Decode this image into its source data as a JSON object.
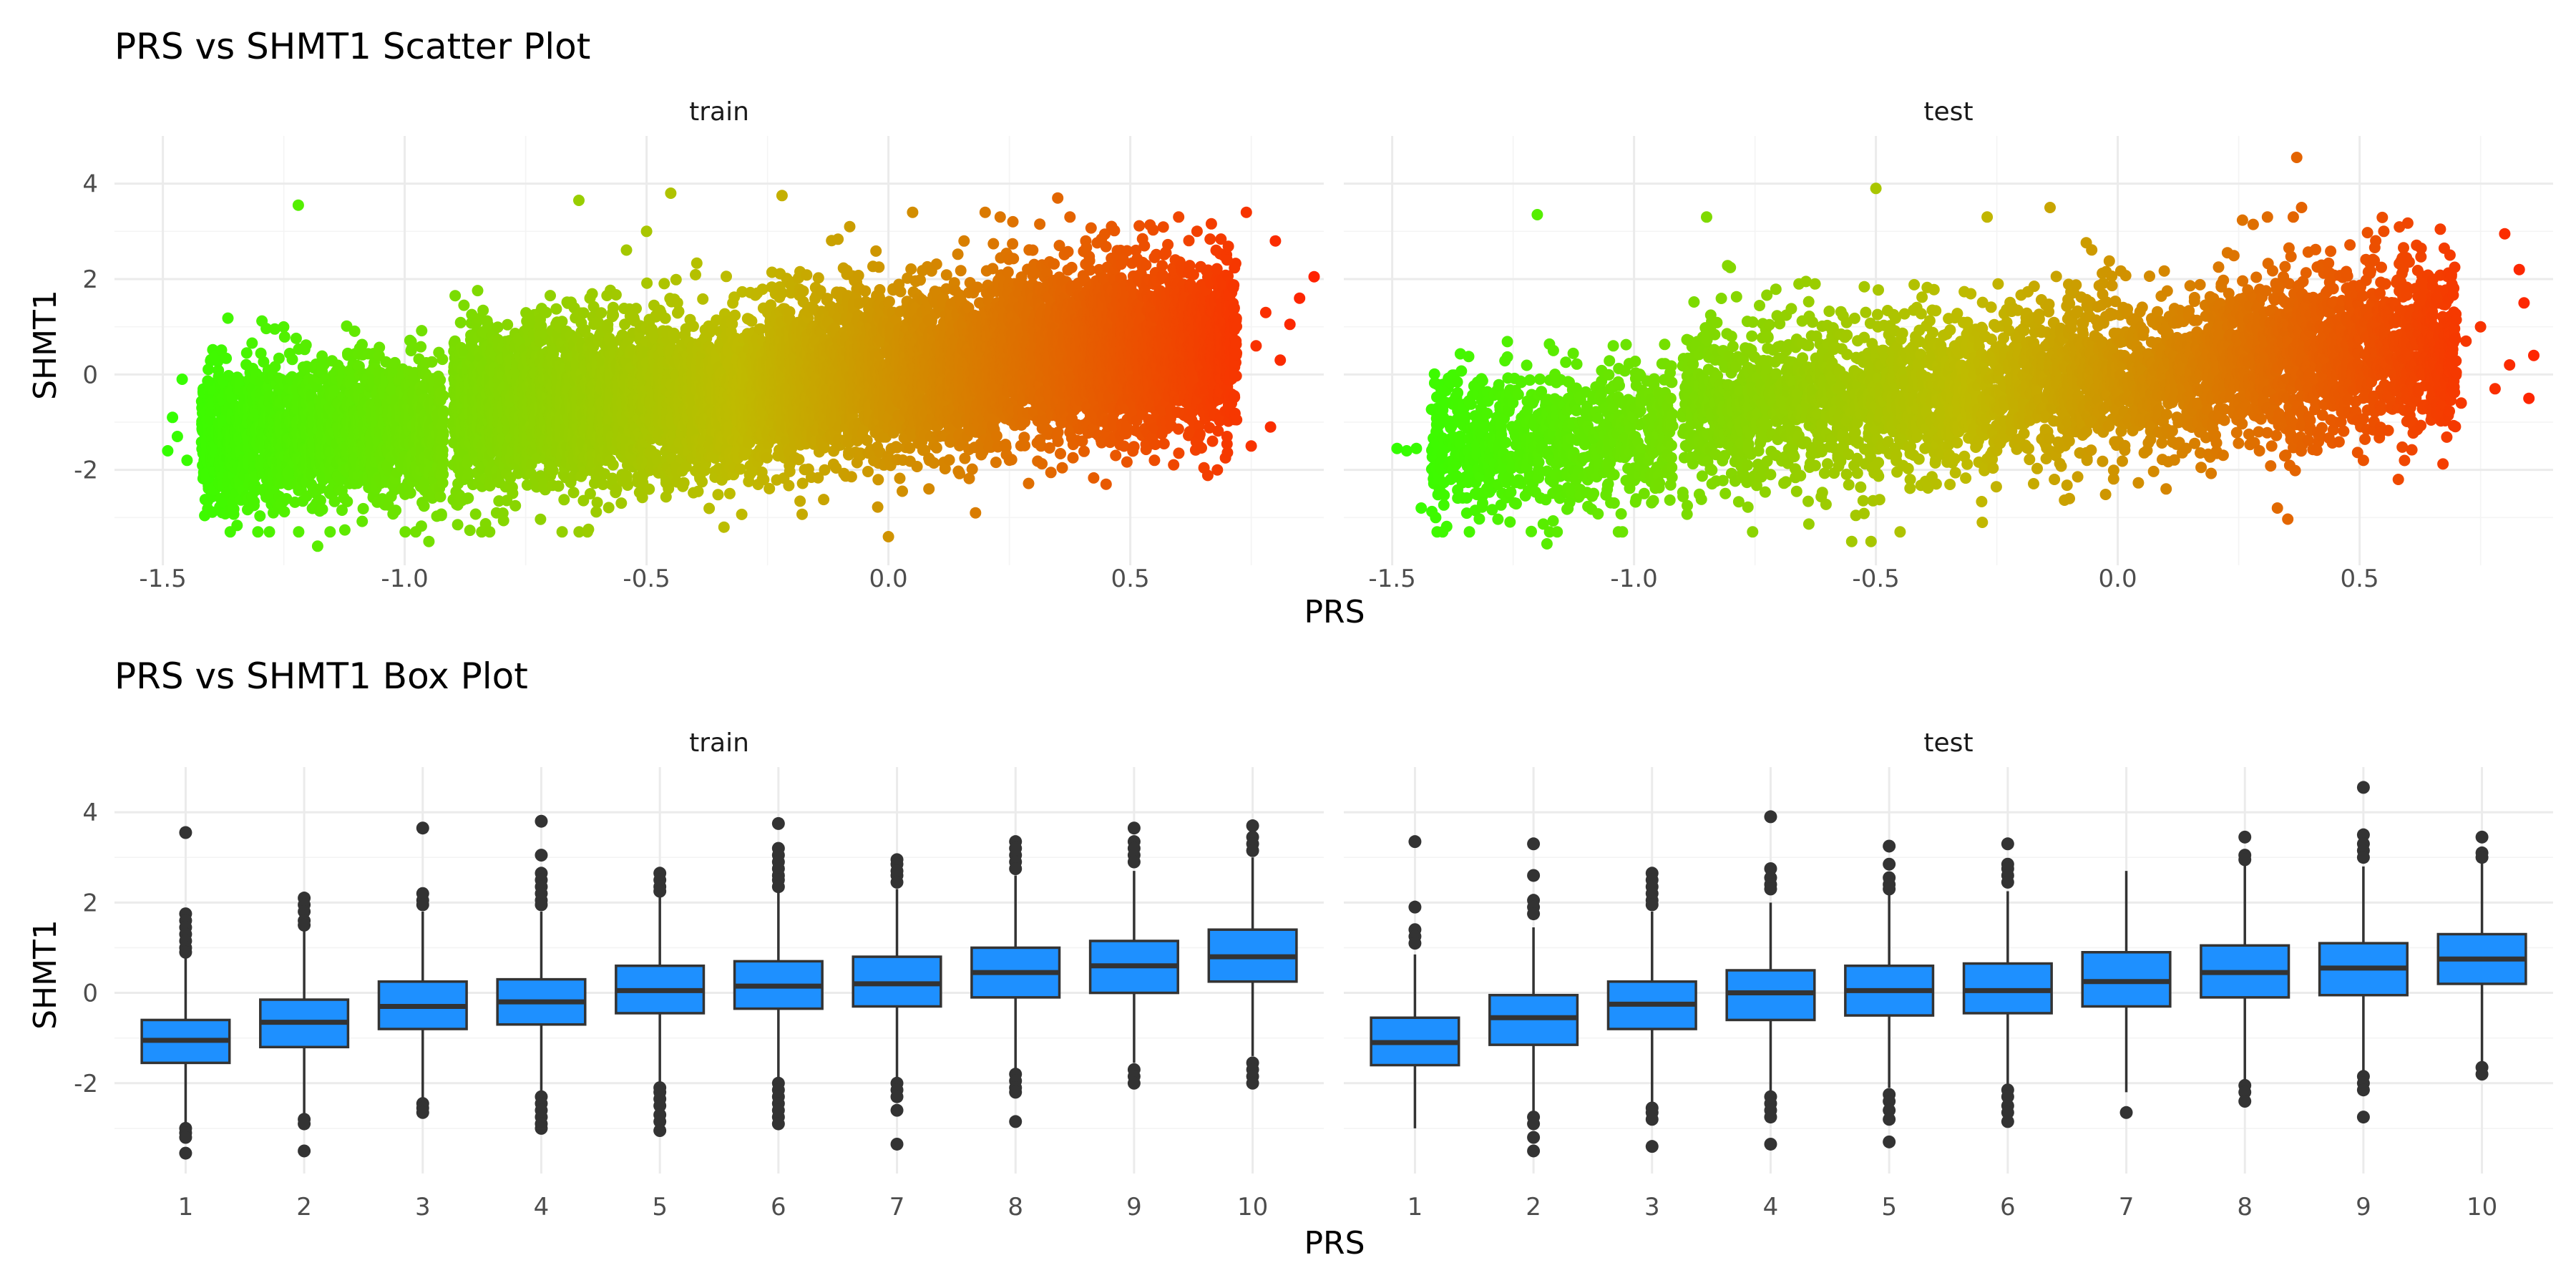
{
  "chart_data": [
    {
      "type": "scatter",
      "title": "PRS vs SHMT1 Scatter Plot",
      "xlabel": "PRS",
      "ylabel": "SHMT1",
      "facets": [
        "train",
        "test"
      ],
      "xlim": [
        -1.6,
        0.9
      ],
      "ylim": [
        -4,
        5
      ],
      "x_ticks": [
        -1.5,
        -1.0,
        -0.5,
        0.0,
        0.5
      ],
      "x_tick_labels": [
        "-1.5",
        "-1.0",
        "-0.5",
        "0.0",
        "0.5"
      ],
      "y_ticks": [
        -2,
        0,
        2,
        4
      ],
      "y_tick_labels": [
        "-2",
        "0",
        "2",
        "4"
      ],
      "color_scale": {
        "low": "#33ff00",
        "mid": "#bfbb00",
        "high": "#ff2200",
        "mapped_to": "PRS"
      },
      "trend": "positive association; SHMT1 rises with PRS",
      "panels": [
        {
          "facet": "train",
          "clusters": [
            {
              "x_range": [
                -1.42,
                -0.92
              ],
              "y_mean": -1.2,
              "y_spread": 0.75,
              "n": 2000
            },
            {
              "x_range": [
                -0.9,
                -0.25
              ],
              "y_mean": -0.55,
              "y_spread": 0.85,
              "n": 3500
            },
            {
              "x_range": [
                -0.25,
                0.2
              ],
              "y_mean": 0.0,
              "y_spread": 0.85,
              "n": 2500
            },
            {
              "x_range": [
                0.2,
                0.72
              ],
              "y_mean": 0.5,
              "y_spread": 0.9,
              "n": 3000
            }
          ],
          "points": [
            [
              -1.48,
              -0.9
            ],
            [
              -1.47,
              -1.3
            ],
            [
              -1.46,
              -0.1
            ],
            [
              -1.49,
              -1.6
            ],
            [
              -1.45,
              -1.8
            ],
            [
              -1.22,
              3.55
            ],
            [
              -1.18,
              -3.6
            ],
            [
              -0.95,
              -3.5
            ],
            [
              -0.64,
              3.65
            ],
            [
              -0.45,
              3.8
            ],
            [
              -0.5,
              3.0
            ],
            [
              -0.22,
              3.75
            ],
            [
              0.0,
              -3.4
            ],
            [
              0.18,
              -2.9
            ],
            [
              0.35,
              3.7
            ],
            [
              0.7,
              2.4
            ],
            [
              0.74,
              3.4
            ],
            [
              0.78,
              1.3
            ],
            [
              0.81,
              0.3
            ],
            [
              0.8,
              2.8
            ],
            [
              0.83,
              1.05
            ],
            [
              0.85,
              1.6
            ],
            [
              0.88,
              2.05
            ],
            [
              0.76,
              0.6
            ],
            [
              0.7,
              -1.3
            ],
            [
              0.75,
              -1.5
            ],
            [
              0.68,
              -2.0
            ],
            [
              0.79,
              -1.1
            ],
            [
              0.55,
              -1.8
            ],
            [
              0.6,
              3.3
            ],
            [
              0.45,
              -2.3
            ],
            [
              0.05,
              3.4
            ],
            [
              0.2,
              3.4
            ],
            [
              -0.08,
              3.1
            ],
            [
              -0.34,
              -3.2
            ]
          ]
        },
        {
          "facet": "test",
          "clusters": [
            {
              "x_range": [
                -1.42,
                -0.92
              ],
              "y_mean": -1.3,
              "y_spread": 0.75,
              "n": 900
            },
            {
              "x_range": [
                -0.9,
                -0.25
              ],
              "y_mean": -0.5,
              "y_spread": 0.85,
              "n": 1500
            },
            {
              "x_range": [
                -0.25,
                0.2
              ],
              "y_mean": 0.0,
              "y_spread": 0.85,
              "n": 1100
            },
            {
              "x_range": [
                0.2,
                0.7
              ],
              "y_mean": 0.45,
              "y_spread": 0.9,
              "n": 1400
            }
          ],
          "points": [
            [
              -1.47,
              -1.6
            ],
            [
              -1.49,
              -1.55
            ],
            [
              -1.45,
              -1.55
            ],
            [
              -1.44,
              -2.8
            ],
            [
              -1.41,
              -3.0
            ],
            [
              -1.2,
              3.35
            ],
            [
              -0.85,
              3.3
            ],
            [
              -0.5,
              3.9
            ],
            [
              -0.27,
              3.3
            ],
            [
              -0.14,
              3.5
            ],
            [
              0.37,
              4.55
            ],
            [
              0.38,
              3.5
            ],
            [
              0.55,
              3.0
            ],
            [
              -1.18,
              -3.55
            ],
            [
              -0.51,
              -3.5
            ],
            [
              -0.55,
              -3.5
            ],
            [
              -0.45,
              -3.3
            ],
            [
              -0.28,
              -3.1
            ],
            [
              -0.1,
              -2.6
            ],
            [
              0.1,
              -2.4
            ],
            [
              0.33,
              -2.8
            ],
            [
              0.58,
              -2.2
            ],
            [
              0.66,
              1.6
            ],
            [
              0.72,
              0.7
            ],
            [
              0.75,
              1.0
            ],
            [
              0.78,
              -0.3
            ],
            [
              0.81,
              0.2
            ],
            [
              0.83,
              2.2
            ],
            [
              0.84,
              1.5
            ],
            [
              0.8,
              2.95
            ],
            [
              0.85,
              -0.5
            ],
            [
              0.86,
              0.4
            ],
            [
              0.71,
              -0.6
            ]
          ]
        }
      ]
    },
    {
      "type": "box",
      "title": "PRS vs SHMT1 Box Plot",
      "xlabel": "PRS",
      "ylabel": "SHMT1",
      "facets": [
        "train",
        "test"
      ],
      "categories": [
        "1",
        "2",
        "3",
        "4",
        "5",
        "6",
        "7",
        "8",
        "9",
        "10"
      ],
      "ylim": [
        -4,
        5
      ],
      "y_ticks": [
        -2,
        0,
        2,
        4
      ],
      "y_tick_labels": [
        "-2",
        "0",
        "2",
        "4"
      ],
      "box_fill": "#1e90ff",
      "box_outline": "#333333",
      "panels": [
        {
          "facet": "train",
          "boxes": [
            {
              "q1": -1.55,
              "median": -1.05,
              "q3": -0.6,
              "whisker_low": -2.95,
              "whisker_high": 0.8,
              "outliers": [
                3.55,
                1.75,
                1.6,
                1.45,
                1.3,
                1.15,
                1.0,
                0.9,
                -3.0,
                -3.1,
                -3.2,
                -3.55
              ]
            },
            {
              "q1": -1.2,
              "median": -0.65,
              "q3": -0.15,
              "whisker_low": -2.7,
              "whisker_high": 1.4,
              "outliers": [
                2.1,
                1.95,
                1.8,
                1.6,
                1.5,
                -2.8,
                -2.9,
                -3.5
              ]
            },
            {
              "q1": -0.8,
              "median": -0.3,
              "q3": 0.25,
              "whisker_low": -2.4,
              "whisker_high": 1.8,
              "outliers": [
                3.65,
                2.2,
                2.05,
                1.95,
                -2.45,
                -2.55,
                -2.65
              ]
            },
            {
              "q1": -0.7,
              "median": -0.2,
              "q3": 0.3,
              "whisker_low": -2.2,
              "whisker_high": 1.8,
              "outliers": [
                3.8,
                3.05,
                2.65,
                2.5,
                2.35,
                2.2,
                2.05,
                1.95,
                -2.3,
                -2.45,
                -2.6,
                -2.75,
                -2.9,
                -3.0
              ]
            },
            {
              "q1": -0.45,
              "median": 0.05,
              "q3": 0.6,
              "whisker_low": -2.0,
              "whisker_high": 2.15,
              "outliers": [
                2.65,
                2.5,
                2.35,
                2.25,
                -2.1,
                -2.2,
                -2.35,
                -2.5,
                -2.7,
                -2.85,
                -3.05
              ]
            },
            {
              "q1": -0.35,
              "median": 0.15,
              "q3": 0.7,
              "whisker_low": -1.95,
              "whisker_high": 2.25,
              "outliers": [
                3.75,
                3.2,
                3.05,
                2.9,
                2.75,
                2.6,
                2.5,
                2.35,
                -2.0,
                -2.15,
                -2.3,
                -2.45,
                -2.6,
                -2.75,
                -2.9
              ]
            },
            {
              "q1": -0.3,
              "median": 0.2,
              "q3": 0.8,
              "whisker_low": -1.9,
              "whisker_high": 2.3,
              "outliers": [
                2.95,
                2.85,
                2.7,
                2.6,
                2.45,
                -2.0,
                -2.15,
                -2.3,
                -2.6,
                -3.35
              ]
            },
            {
              "q1": -0.1,
              "median": 0.45,
              "q3": 1.0,
              "whisker_low": -1.7,
              "whisker_high": 2.6,
              "outliers": [
                3.35,
                3.2,
                3.05,
                2.9,
                2.75,
                -1.8,
                -1.95,
                -2.1,
                -2.2,
                -2.85
              ]
            },
            {
              "q1": 0.0,
              "median": 0.6,
              "q3": 1.15,
              "whisker_low": -1.55,
              "whisker_high": 2.7,
              "outliers": [
                3.65,
                3.35,
                3.2,
                3.05,
                2.9,
                -1.7,
                -1.85,
                -2.0
              ]
            },
            {
              "q1": 0.25,
              "median": 0.8,
              "q3": 1.4,
              "whisker_low": -1.4,
              "whisker_high": 3.0,
              "outliers": [
                3.7,
                3.45,
                3.3,
                3.15,
                -1.55,
                -1.7,
                -1.85,
                -2.0
              ]
            }
          ]
        },
        {
          "facet": "test",
          "boxes": [
            {
              "q1": -1.6,
              "median": -1.1,
              "q3": -0.55,
              "whisker_low": -3.0,
              "whisker_high": 0.85,
              "outliers": [
                3.35,
                1.9,
                1.4,
                1.25,
                1.1
              ]
            },
            {
              "q1": -1.15,
              "median": -0.55,
              "q3": -0.05,
              "whisker_low": -2.65,
              "whisker_high": 1.45,
              "outliers": [
                3.3,
                2.6,
                2.05,
                1.9,
                1.75,
                -2.75,
                -2.9,
                -3.2,
                -3.5
              ]
            },
            {
              "q1": -0.8,
              "median": -0.25,
              "q3": 0.25,
              "whisker_low": -2.45,
              "whisker_high": 1.8,
              "outliers": [
                2.65,
                2.5,
                2.35,
                2.2,
                2.05,
                1.95,
                -2.55,
                -2.65,
                -2.8,
                -3.4
              ]
            },
            {
              "q1": -0.6,
              "median": 0.0,
              "q3": 0.5,
              "whisker_low": -2.2,
              "whisker_high": 2.0,
              "outliers": [
                3.9,
                2.75,
                2.55,
                2.4,
                2.3,
                -2.3,
                -2.45,
                -2.6,
                -2.75,
                -3.35
              ]
            },
            {
              "q1": -0.5,
              "median": 0.05,
              "q3": 0.6,
              "whisker_low": -2.1,
              "whisker_high": 2.2,
              "outliers": [
                3.25,
                2.85,
                2.55,
                2.4,
                2.3,
                -2.25,
                -2.4,
                -2.6,
                -2.8,
                -3.3
              ]
            },
            {
              "q1": -0.45,
              "median": 0.05,
              "q3": 0.65,
              "whisker_low": -2.05,
              "whisker_high": 2.25,
              "outliers": [
                3.3,
                2.85,
                2.75,
                2.6,
                2.45,
                -2.15,
                -2.3,
                -2.5,
                -2.65,
                -2.85
              ]
            },
            {
              "q1": -0.3,
              "median": 0.25,
              "q3": 0.9,
              "whisker_low": -2.2,
              "whisker_high": 2.7,
              "outliers": [
                -2.65
              ]
            },
            {
              "q1": -0.1,
              "median": 0.45,
              "q3": 1.05,
              "whisker_low": -1.95,
              "whisker_high": 2.85,
              "outliers": [
                3.45,
                3.05,
                2.95,
                -2.05,
                -2.2,
                -2.4
              ]
            },
            {
              "q1": -0.05,
              "median": 0.55,
              "q3": 1.1,
              "whisker_low": -1.75,
              "whisker_high": 2.8,
              "outliers": [
                4.55,
                3.5,
                3.3,
                3.15,
                3.0,
                -1.85,
                -2.0,
                -2.15,
                -2.75
              ]
            },
            {
              "q1": 0.2,
              "median": 0.75,
              "q3": 1.3,
              "whisker_low": -1.55,
              "whisker_high": 2.95,
              "outliers": [
                3.45,
                3.1,
                3.0,
                -1.65,
                -1.8
              ]
            }
          ]
        }
      ]
    }
  ]
}
